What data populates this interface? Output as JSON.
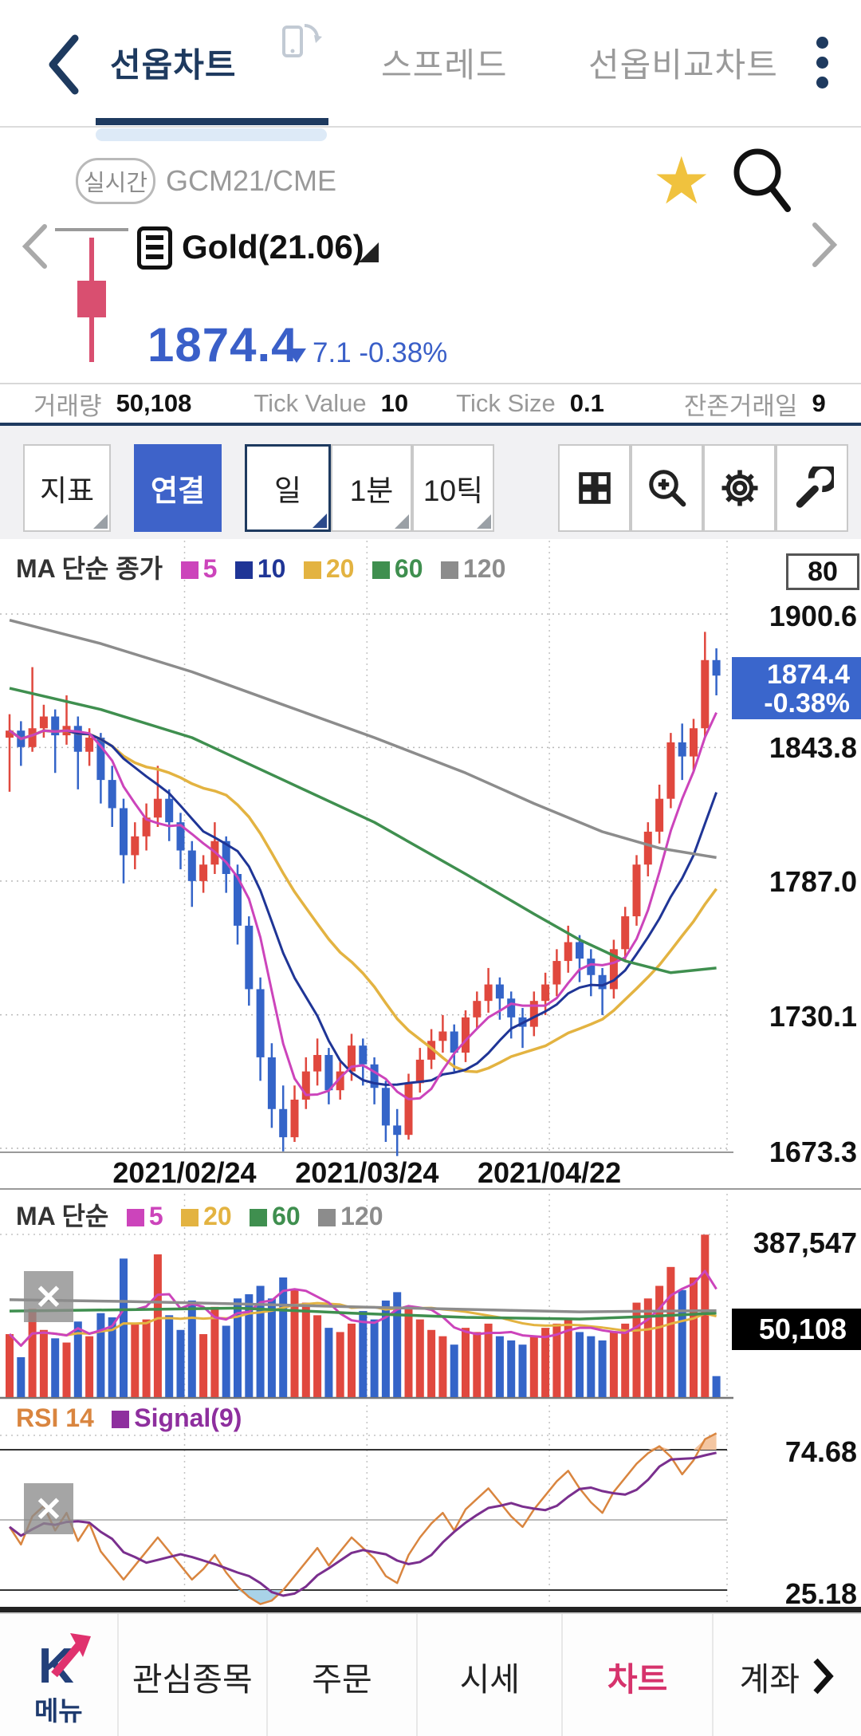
{
  "header": {
    "tabs": [
      {
        "label": "선옵차트",
        "active": true
      },
      {
        "label": "스프레드",
        "active": false
      },
      {
        "label": "선옵비교차트",
        "active": false
      }
    ]
  },
  "symbol": {
    "realtime_badge": "실시간",
    "code": "GCM21/CME",
    "name": "Gold(21.06)",
    "price": "1874.4",
    "change": "7.1 -0.38%"
  },
  "stats": [
    {
      "label": "거래량",
      "value": "50,108"
    },
    {
      "label": "Tick Value",
      "value": "10"
    },
    {
      "label": "Tick Size",
      "value": "0.1"
    },
    {
      "label": "잔존거래일",
      "value": "9"
    }
  ],
  "toolbar": {
    "indicator_label": "지표",
    "link_label": "연결",
    "period_day": "일",
    "period_1min": "1분",
    "period_10tick": "10틱",
    "icons": [
      "grid-icon",
      "zoom-in-icon",
      "settings-icon",
      "wrench-icon"
    ]
  },
  "main_chart": {
    "legend_title": "MA 단순 종가",
    "legend": [
      {
        "label": "5",
        "color": "#cc44bb"
      },
      {
        "label": "10",
        "color": "#1f3596"
      },
      {
        "label": "20",
        "color": "#e3b341"
      },
      {
        "label": "60",
        "color": "#3f8f4f"
      },
      {
        "label": "120",
        "color": "#8c8c8c"
      }
    ],
    "top_box": "80",
    "y_labels": [
      "1900.6",
      "1843.8",
      "1787.0",
      "1730.1",
      "1673.3"
    ],
    "price_badge": {
      "price": "1874.4",
      "pct": "-0.38%"
    }
  },
  "volume_panel": {
    "legend_title": "MA 단순",
    "legend": [
      {
        "label": "5",
        "color": "#cc44bb"
      },
      {
        "label": "20",
        "color": "#e3b341"
      },
      {
        "label": "60",
        "color": "#3f8f4f"
      },
      {
        "label": "120",
        "color": "#8c8c8c"
      }
    ],
    "max_label": "387,547",
    "current_label": "50,108",
    "close_label": "✕"
  },
  "rsi_panel": {
    "title": "RSI 14",
    "title_color": "#d9853f",
    "signal_label": "Signal(9)",
    "signal_color": "#8e2f9e",
    "upper_label": "74.68",
    "lower_label": "25.18",
    "close_label": "✕"
  },
  "bottom_nav": {
    "items": [
      {
        "label": "메뉴",
        "active": false
      },
      {
        "label": "관심종목",
        "active": false
      },
      {
        "label": "주문",
        "active": false
      },
      {
        "label": "시세",
        "active": false
      },
      {
        "label": "차트",
        "active": true
      },
      {
        "label": "계좌",
        "active": false
      }
    ]
  },
  "colors": {
    "up": "#e0483e",
    "down": "#3464c8",
    "accent_navy": "#1e3a5f",
    "price_blue": "#3a5fc8",
    "badge_blue": "#3a66cc",
    "active_pink": "#d6336c",
    "rsi_orange": "#d9853f",
    "signal_purple": "#7a2f8e"
  },
  "chart_data": {
    "type": "candlestick",
    "title": "Gold(21.06) GCM21/CME daily chart with MA overlays, volume and RSI",
    "y_axis": {
      "max": 1900.6,
      "min": 1673.3,
      "gridlines": [
        1900.6,
        1843.8,
        1787.0,
        1730.1,
        1673.3
      ]
    },
    "x_labels": [
      {
        "label": "2021/02/24",
        "index": 15
      },
      {
        "label": "2021/03/24",
        "index": 31
      },
      {
        "label": "2021/04/22",
        "index": 47
      }
    ],
    "ohlc": [
      [
        1848,
        1858,
        1825,
        1851
      ],
      [
        1851,
        1855,
        1836,
        1844
      ],
      [
        1844,
        1878,
        1842,
        1852
      ],
      [
        1852,
        1862,
        1848,
        1857
      ],
      [
        1857,
        1860,
        1833,
        1849
      ],
      [
        1849,
        1866,
        1845,
        1853
      ],
      [
        1853,
        1857,
        1826,
        1842
      ],
      [
        1842,
        1852,
        1836,
        1848
      ],
      [
        1848,
        1850,
        1820,
        1830
      ],
      [
        1830,
        1836,
        1810,
        1818
      ],
      [
        1818,
        1822,
        1786,
        1798
      ],
      [
        1798,
        1812,
        1792,
        1806
      ],
      [
        1806,
        1820,
        1800,
        1814
      ],
      [
        1814,
        1836,
        1810,
        1822
      ],
      [
        1822,
        1826,
        1804,
        1812
      ],
      [
        1812,
        1816,
        1792,
        1800
      ],
      [
        1800,
        1804,
        1776,
        1787
      ],
      [
        1787,
        1798,
        1782,
        1794
      ],
      [
        1794,
        1812,
        1790,
        1804
      ],
      [
        1804,
        1806,
        1782,
        1790
      ],
      [
        1790,
        1794,
        1760,
        1768
      ],
      [
        1768,
        1772,
        1734,
        1741
      ],
      [
        1741,
        1746,
        1702,
        1712
      ],
      [
        1712,
        1718,
        1682,
        1690
      ],
      [
        1690,
        1700,
        1672,
        1678
      ],
      [
        1678,
        1700,
        1676,
        1694
      ],
      [
        1694,
        1712,
        1690,
        1706
      ],
      [
        1706,
        1720,
        1700,
        1713
      ],
      [
        1713,
        1716,
        1692,
        1698
      ],
      [
        1698,
        1710,
        1694,
        1706
      ],
      [
        1706,
        1722,
        1702,
        1717
      ],
      [
        1717,
        1720,
        1700,
        1709
      ],
      [
        1709,
        1712,
        1692,
        1699
      ],
      [
        1699,
        1702,
        1676,
        1683
      ],
      [
        1683,
        1690,
        1670,
        1679
      ],
      [
        1679,
        1705,
        1677,
        1701
      ],
      [
        1701,
        1716,
        1697,
        1711
      ],
      [
        1711,
        1724,
        1707,
        1719
      ],
      [
        1719,
        1730,
        1714,
        1723
      ],
      [
        1723,
        1726,
        1706,
        1714
      ],
      [
        1714,
        1732,
        1710,
        1729
      ],
      [
        1729,
        1740,
        1724,
        1736
      ],
      [
        1736,
        1750,
        1731,
        1743
      ],
      [
        1743,
        1746,
        1728,
        1737
      ],
      [
        1737,
        1740,
        1720,
        1729
      ],
      [
        1729,
        1733,
        1716,
        1725
      ],
      [
        1725,
        1740,
        1721,
        1736
      ],
      [
        1736,
        1748,
        1730,
        1743
      ],
      [
        1743,
        1758,
        1738,
        1753
      ],
      [
        1753,
        1768,
        1748,
        1761
      ],
      [
        1761,
        1764,
        1744,
        1754
      ],
      [
        1754,
        1758,
        1738,
        1747
      ],
      [
        1747,
        1750,
        1730,
        1741
      ],
      [
        1741,
        1762,
        1737,
        1758
      ],
      [
        1758,
        1776,
        1753,
        1772
      ],
      [
        1772,
        1798,
        1768,
        1794
      ],
      [
        1794,
        1812,
        1789,
        1808
      ],
      [
        1808,
        1828,
        1803,
        1822
      ],
      [
        1822,
        1850,
        1818,
        1846
      ],
      [
        1846,
        1854,
        1830,
        1840
      ],
      [
        1840,
        1856,
        1834,
        1852
      ],
      [
        1852,
        1893,
        1848,
        1881
      ],
      [
        1881,
        1886,
        1866,
        1874.4
      ]
    ],
    "ma60_points": [
      [
        0,
        1869
      ],
      [
        8,
        1860
      ],
      [
        16,
        1848
      ],
      [
        24,
        1830
      ],
      [
        32,
        1812
      ],
      [
        40,
        1790
      ],
      [
        46,
        1773
      ],
      [
        50,
        1762
      ],
      [
        54,
        1753
      ],
      [
        58,
        1748
      ],
      [
        62,
        1750
      ]
    ],
    "ma120_points": [
      [
        0,
        1898
      ],
      [
        8,
        1888
      ],
      [
        16,
        1876
      ],
      [
        24,
        1862
      ],
      [
        32,
        1848
      ],
      [
        40,
        1833
      ],
      [
        46,
        1820
      ],
      [
        52,
        1808
      ],
      [
        57,
        1801
      ],
      [
        62,
        1797
      ]
    ],
    "volume": {
      "max": 387547,
      "values_k": [
        150,
        95,
        210,
        160,
        140,
        130,
        180,
        145,
        200,
        190,
        330,
        175,
        185,
        340,
        195,
        160,
        230,
        150,
        215,
        170,
        235,
        245,
        265,
        235,
        285,
        255,
        225,
        195,
        165,
        155,
        175,
        205,
        185,
        230,
        250,
        215,
        185,
        160,
        145,
        125,
        165,
        155,
        175,
        145,
        135,
        125,
        145,
        165,
        175,
        185,
        155,
        145,
        135,
        155,
        175,
        225,
        235,
        265,
        310,
        255,
        285,
        387,
        50
      ],
      "ma60_points_k": [
        [
          0,
          205
        ],
        [
          10,
          208
        ],
        [
          20,
          212
        ],
        [
          30,
          200
        ],
        [
          40,
          190
        ],
        [
          50,
          186
        ],
        [
          56,
          192
        ],
        [
          62,
          200
        ]
      ],
      "ma120_points_k": [
        [
          0,
          232
        ],
        [
          10,
          228
        ],
        [
          20,
          222
        ],
        [
          30,
          215
        ],
        [
          40,
          209
        ],
        [
          50,
          203
        ],
        [
          62,
          206
        ]
      ]
    },
    "rsi": {
      "period": 14,
      "upper": 70,
      "mid": 50,
      "lower": 30,
      "values": [
        48,
        43,
        51,
        54,
        47,
        52,
        44,
        49,
        41,
        37,
        33,
        37,
        41,
        45,
        41,
        37,
        33,
        36,
        40,
        35,
        31,
        28,
        26,
        27,
        30,
        34,
        38,
        42,
        37,
        41,
        45,
        42,
        39,
        34,
        32,
        40,
        45,
        49,
        52,
        47,
        53,
        56,
        59,
        55,
        51,
        48,
        53,
        57,
        61,
        64,
        59,
        55,
        52,
        58,
        62,
        66,
        69,
        71,
        68,
        63,
        67,
        73,
        74.68
      ]
    }
  }
}
